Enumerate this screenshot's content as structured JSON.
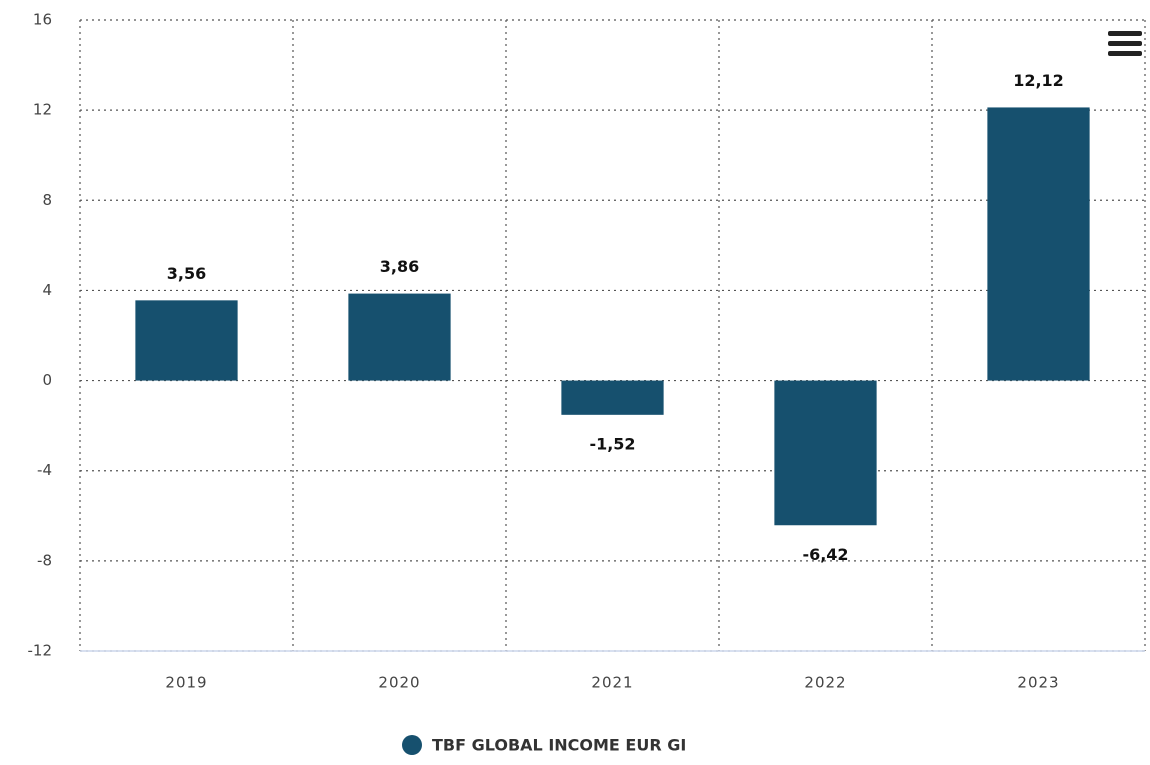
{
  "chart_data": {
    "type": "bar",
    "categories": [
      "2019",
      "2020",
      "2021",
      "2022",
      "2023"
    ],
    "series": [
      {
        "name": "TBF GLOBAL INCOME EUR GI",
        "color": "#16506e",
        "values": [
          3.56,
          3.86,
          -1.52,
          -6.42,
          12.12
        ],
        "value_labels": [
          "3,56",
          "3,86",
          "-1,52",
          "-6,42",
          "12,12"
        ]
      }
    ],
    "ylim": [
      -12,
      16
    ],
    "yticks": [
      -12,
      -8,
      -4,
      0,
      4,
      8,
      12,
      16
    ],
    "grid": true,
    "legend": "bottom"
  }
}
